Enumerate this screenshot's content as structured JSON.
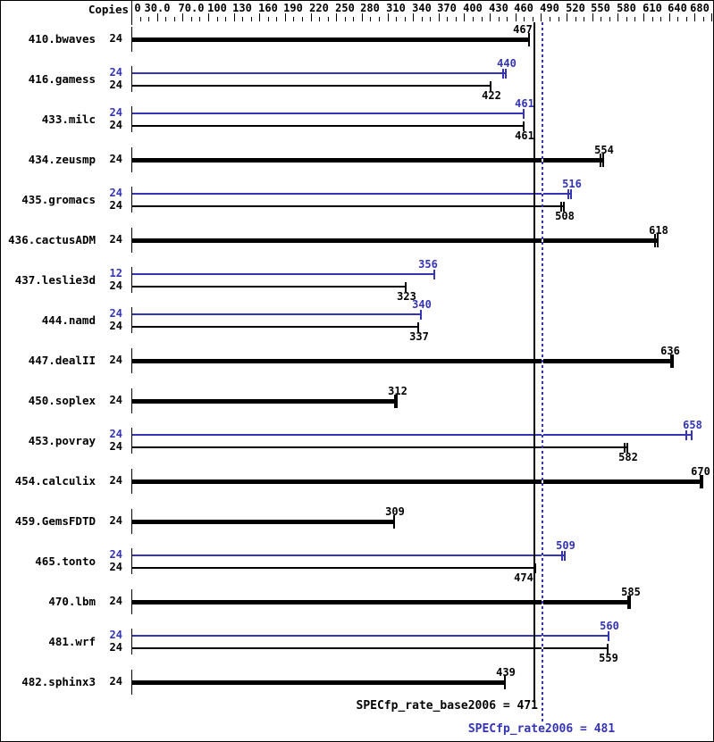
{
  "header": {
    "copies_label": "Copies"
  },
  "colors": {
    "base": "#000000",
    "peak": "#3434b4",
    "background": "#ffffff"
  },
  "axis": {
    "min": 0,
    "max": 680,
    "minor_step": 10,
    "major_step": 30,
    "labels": [
      {
        "v": 0,
        "t": "0",
        "dx": 7
      },
      {
        "v": 30,
        "t": "30.0"
      },
      {
        "v": 70,
        "t": "70.0"
      },
      {
        "v": 100,
        "t": "100"
      },
      {
        "v": 130,
        "t": "130"
      },
      {
        "v": 160,
        "t": "160"
      },
      {
        "v": 190,
        "t": "190"
      },
      {
        "v": 220,
        "t": "220"
      },
      {
        "v": 250,
        "t": "250"
      },
      {
        "v": 280,
        "t": "280"
      },
      {
        "v": 310,
        "t": "310"
      },
      {
        "v": 340,
        "t": "340"
      },
      {
        "v": 370,
        "t": "370"
      },
      {
        "v": 400,
        "t": "400"
      },
      {
        "v": 430,
        "t": "430"
      },
      {
        "v": 460,
        "t": "460"
      },
      {
        "v": 490,
        "t": "490"
      },
      {
        "v": 520,
        "t": "520"
      },
      {
        "v": 550,
        "t": "550"
      },
      {
        "v": 580,
        "t": "580"
      },
      {
        "v": 610,
        "t": "610"
      },
      {
        "v": 640,
        "t": "640"
      },
      {
        "v": 680,
        "t": "680",
        "dx": -13
      }
    ]
  },
  "chart_data": {
    "type": "bar",
    "orientation": "horizontal",
    "title": "",
    "xlabel": "",
    "ylabel": "Copies",
    "xlim": [
      0,
      680
    ],
    "grid": false,
    "legend_position": "none",
    "series_meaning": {
      "base": "SPECfp_rate_base2006 (black)",
      "peak": "SPECfp_rate2006 (blue)"
    },
    "benchmarks": [
      {
        "name": "410.bwaves",
        "bars": [
          {
            "series": "base",
            "copies": 24,
            "value": 467,
            "ticks": [
              0
            ],
            "label_dx": -8
          }
        ]
      },
      {
        "name": "416.gamess",
        "bars": [
          {
            "series": "peak",
            "copies": 24,
            "value": 440,
            "ticks": [
              -3,
              0
            ]
          },
          {
            "series": "base",
            "copies": 24,
            "value": 422,
            "ticks": [
              0
            ]
          }
        ]
      },
      {
        "name": "433.milc",
        "bars": [
          {
            "series": "peak",
            "copies": 24,
            "value": 461,
            "ticks": [
              0
            ]
          },
          {
            "series": "base",
            "copies": 24,
            "value": 461,
            "ticks": [
              0
            ]
          }
        ]
      },
      {
        "name": "434.zeusmp",
        "bars": [
          {
            "series": "base",
            "copies": 24,
            "value": 554,
            "ticks": [
              -3,
              0
            ]
          }
        ]
      },
      {
        "name": "435.gromacs",
        "bars": [
          {
            "series": "peak",
            "copies": 24,
            "value": 516,
            "ticks": [
              -3,
              0
            ]
          },
          {
            "series": "base",
            "copies": 24,
            "value": 508,
            "ticks": [
              -3,
              0
            ]
          }
        ]
      },
      {
        "name": "436.cactusADM",
        "bars": [
          {
            "series": "base",
            "copies": 24,
            "value": 618,
            "ticks": [
              -3,
              0
            ]
          }
        ]
      },
      {
        "name": "437.leslie3d",
        "bars": [
          {
            "series": "peak",
            "copies": 12,
            "value": 356,
            "ticks": [
              0
            ],
            "label_dx": -8
          },
          {
            "series": "base",
            "copies": 24,
            "value": 323,
            "ticks": [
              0
            ]
          }
        ]
      },
      {
        "name": "444.namd",
        "bars": [
          {
            "series": "peak",
            "copies": 24,
            "value": 340,
            "ticks": [
              0
            ]
          },
          {
            "series": "base",
            "copies": 24,
            "value": 337,
            "ticks": [
              0
            ]
          }
        ]
      },
      {
        "name": "447.dealII",
        "bars": [
          {
            "series": "base",
            "copies": 24,
            "value": 636,
            "ticks": [
              -2,
              0
            ],
            "label_dx": -4
          }
        ]
      },
      {
        "name": "450.soplex",
        "bars": [
          {
            "series": "base",
            "copies": 24,
            "value": 312,
            "ticks": [
              -2,
              0
            ]
          }
        ]
      },
      {
        "name": "453.povray",
        "bars": [
          {
            "series": "peak",
            "copies": 24,
            "value": 658,
            "ticks": [
              -6,
              0
            ]
          },
          {
            "series": "base",
            "copies": 24,
            "value": 582,
            "ticks": [
              -3,
              0
            ]
          }
        ]
      },
      {
        "name": "454.calculix",
        "bars": [
          {
            "series": "base",
            "copies": 24,
            "value": 670,
            "ticks": [
              -2,
              0
            ],
            "label_dx": -3
          }
        ]
      },
      {
        "name": "459.GemsFDTD",
        "bars": [
          {
            "series": "base",
            "copies": 24,
            "value": 309,
            "ticks": [
              0
            ]
          }
        ]
      },
      {
        "name": "465.tonto",
        "bars": [
          {
            "series": "peak",
            "copies": 24,
            "value": 509,
            "ticks": [
              -3,
              0
            ]
          },
          {
            "series": "base",
            "copies": 24,
            "value": 474,
            "ticks": [
              0
            ],
            "label_dx": -14
          }
        ]
      },
      {
        "name": "470.lbm",
        "bars": [
          {
            "series": "base",
            "copies": 24,
            "value": 585,
            "ticks": [
              -2,
              0
            ]
          }
        ]
      },
      {
        "name": "481.wrf",
        "bars": [
          {
            "series": "peak",
            "copies": 24,
            "value": 560,
            "ticks": [
              0
            ]
          },
          {
            "series": "base",
            "copies": 24,
            "value": 559,
            "ticks": [
              0
            ]
          }
        ]
      },
      {
        "name": "482.sphinx3",
        "bars": [
          {
            "series": "base",
            "copies": 24,
            "value": 439,
            "ticks": [
              0
            ]
          }
        ]
      }
    ],
    "means": {
      "base": {
        "label": "SPECfp_rate_base2006 = 471",
        "value": 471
      },
      "peak": {
        "label": "SPECfp_rate2006 = 481",
        "value": 481
      }
    }
  }
}
